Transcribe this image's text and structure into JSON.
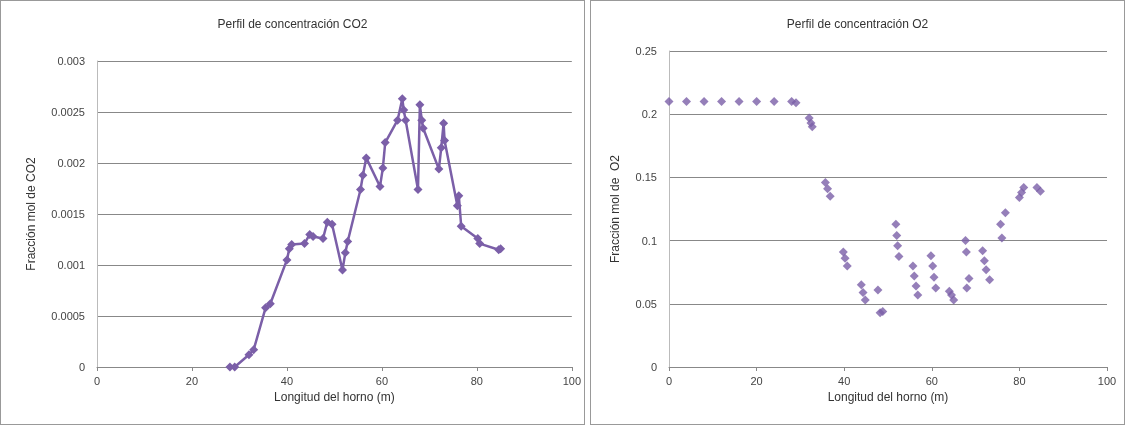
{
  "chart_data": [
    {
      "type": "line",
      "title": "Perfil de concentración CO2",
      "xlabel": "Longitud del horno (m)",
      "ylabel": "Fracción mol de CO2",
      "xlim": [
        0,
        100
      ],
      "xticks": [
        0,
        20,
        40,
        60,
        80,
        100
      ],
      "ylim": [
        0,
        0.003
      ],
      "yticks": [
        0,
        0.0005,
        0.001,
        0.0015,
        0.002,
        0.0025,
        0.003
      ],
      "grid": "y",
      "marker": "diamond",
      "line_style": "solid",
      "series": [
        {
          "color": "#7b5fa8",
          "x": [
            28,
            29,
            32,
            33,
            35.5,
            36.5,
            40,
            40.5,
            41,
            43.7,
            44.8,
            45.5,
            47.6,
            48.5,
            49.5,
            51.7,
            52.3,
            52.8,
            55.5,
            56,
            56.7,
            59.6,
            60.2,
            60.7,
            63.3,
            64.3,
            64.6,
            65,
            67.6,
            68,
            68.4,
            68.7,
            72,
            72.5,
            73,
            73.2,
            75.9,
            76.2,
            76.7,
            80.2,
            80.6,
            84.6,
            85
          ],
          "values": [
            0,
            0,
            0.00012,
            0.00017,
            0.00058,
            0.00062,
            0.00105,
            0.00116,
            0.0012,
            0.00121,
            0.0013,
            0.00128,
            0.00126,
            0.00142,
            0.0014,
            0.00095,
            0.00112,
            0.00123,
            0.00174,
            0.00188,
            0.00205,
            0.00177,
            0.00195,
            0.0022,
            0.00242,
            0.00263,
            0.00252,
            0.00242,
            0.00174,
            0.00257,
            0.00242,
            0.00234,
            0.00194,
            0.00215,
            0.00239,
            0.00222,
            0.00158,
            0.00168,
            0.00138,
            0.00126,
            0.00121,
            0.00115,
            0.00116
          ]
        }
      ]
    },
    {
      "type": "scatter",
      "title": "Perfil de concentración O2",
      "xlabel": "Longitud del horno (m)",
      "ylabel": "Fracción mol de  O2",
      "xlim": [
        0,
        100
      ],
      "xticks": [
        0,
        20,
        40,
        60,
        80,
        100
      ],
      "ylim": [
        0,
        0.25
      ],
      "yticks": [
        0,
        0.05,
        0.1,
        0.15,
        0.2,
        0.25
      ],
      "grid": "y",
      "marker": "diamond",
      "series": [
        {
          "color": "#7b5fa8",
          "x": [
            0,
            4,
            8,
            12,
            16,
            20,
            24,
            28,
            29,
            32,
            32.4,
            32.7,
            35.7,
            36.2,
            36.8,
            39.8,
            40.2,
            40.7,
            43.9,
            44.3,
            44.8,
            47.7,
            48.2,
            48.8,
            51.8,
            52,
            52.2,
            52.5,
            55.7,
            56,
            56.4,
            56.8,
            59.8,
            60.2,
            60.5,
            60.9,
            64,
            64.5,
            65,
            67.7,
            67.9,
            68,
            68.5,
            71.6,
            72,
            72.4,
            73.2,
            75.7,
            76,
            76.8,
            80,
            80.5,
            81,
            84,
            84.8
          ],
          "values": [
            0.21,
            0.21,
            0.21,
            0.21,
            0.21,
            0.21,
            0.21,
            0.21,
            0.209,
            0.197,
            0.193,
            0.19,
            0.146,
            0.141,
            0.135,
            0.091,
            0.086,
            0.08,
            0.065,
            0.059,
            0.053,
            0.061,
            0.043,
            0.044,
            0.113,
            0.104,
            0.096,
            0.0875,
            0.08,
            0.072,
            0.064,
            0.057,
            0.088,
            0.08,
            0.071,
            0.0625,
            0.06,
            0.057,
            0.053,
            0.1,
            0.091,
            0.0625,
            0.07,
            0.092,
            0.084,
            0.077,
            0.069,
            0.113,
            0.102,
            0.122,
            0.134,
            0.138,
            0.142,
            0.142,
            0.139
          ]
        }
      ]
    }
  ]
}
